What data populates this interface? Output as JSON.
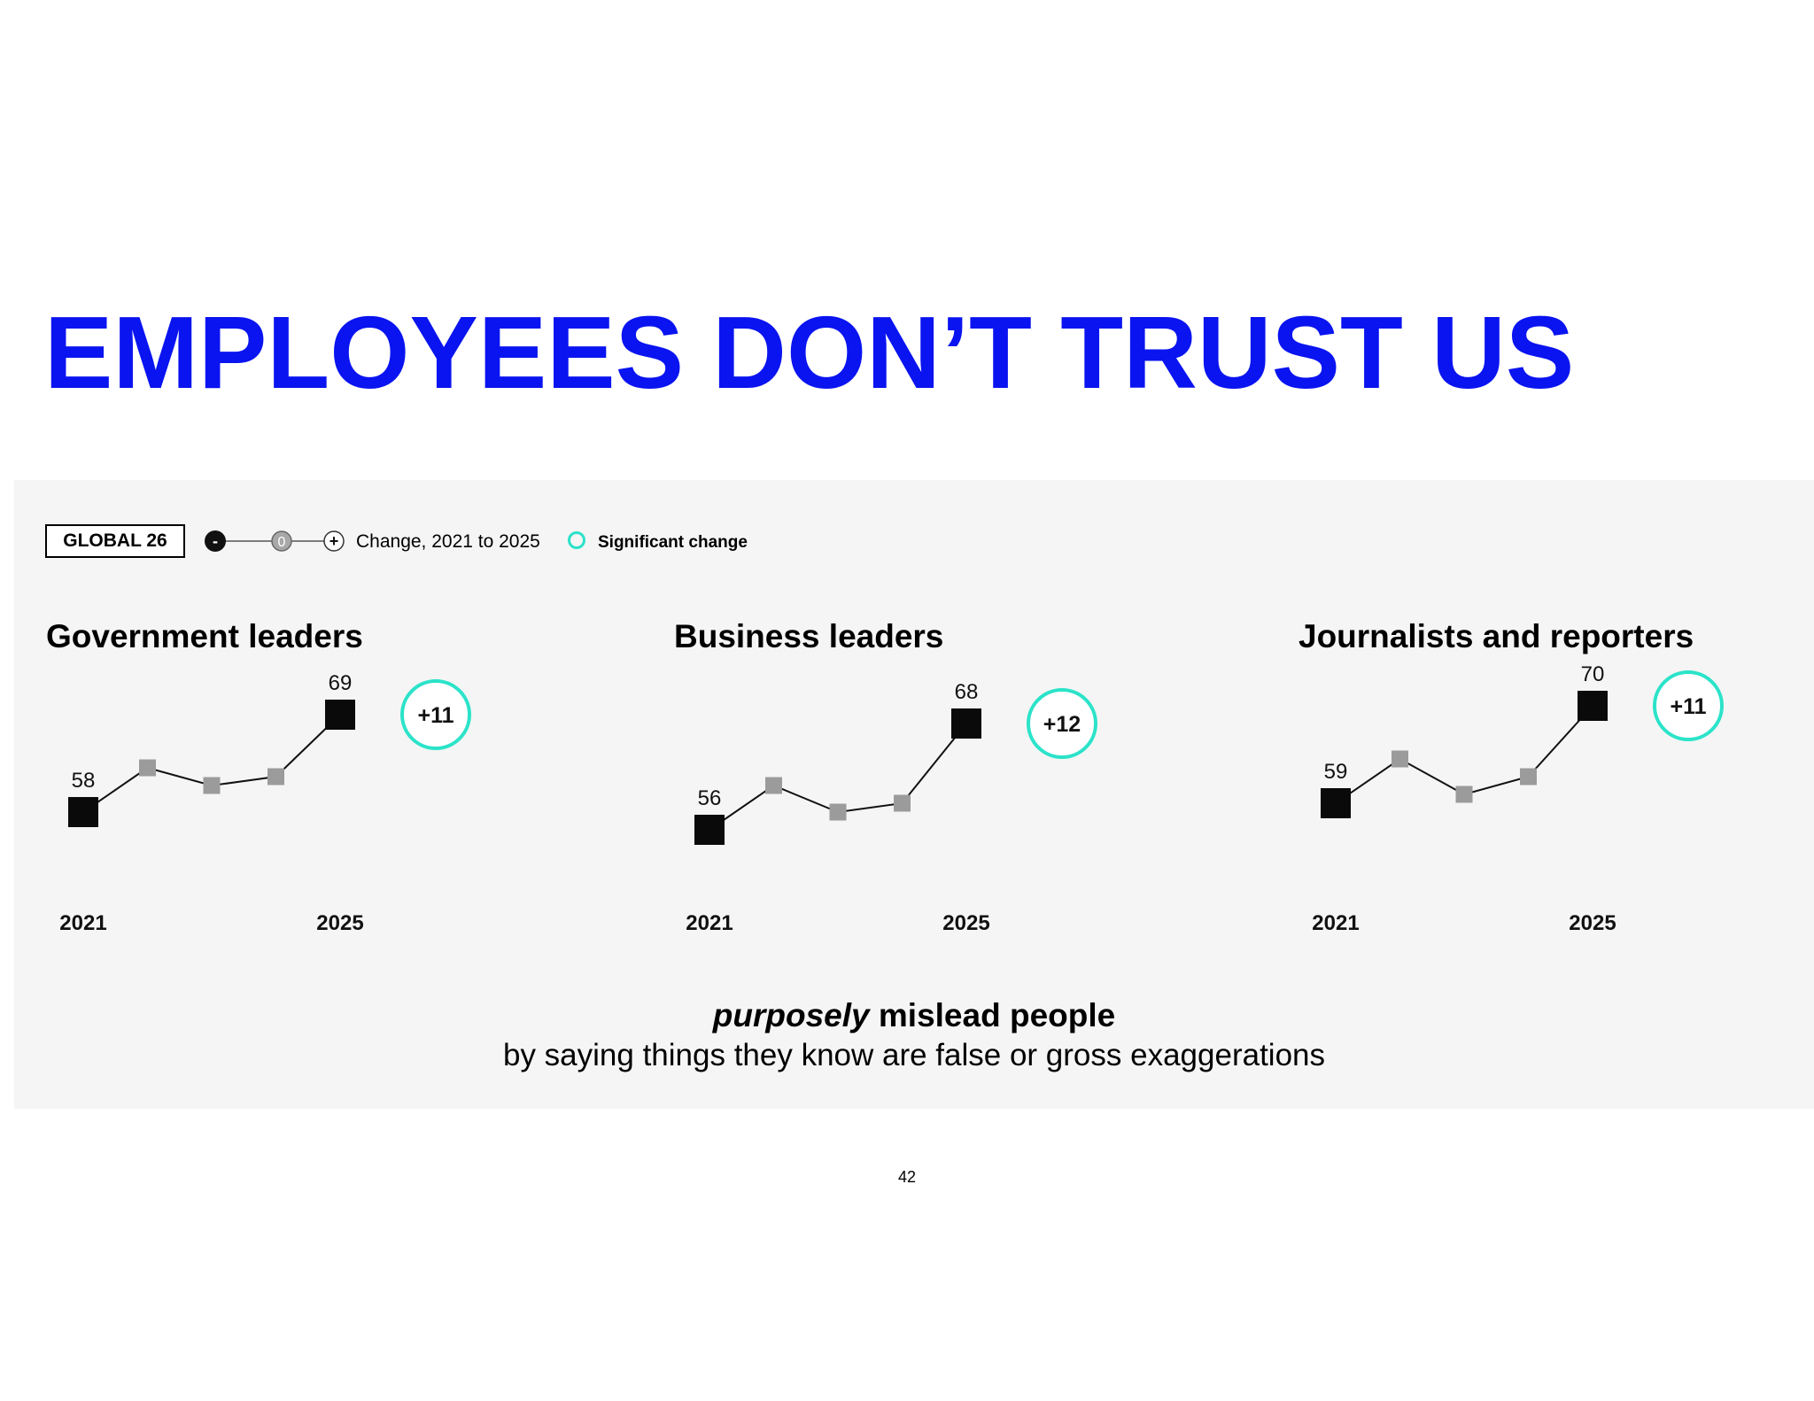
{
  "title": "EMPLOYEES DON’T TRUST US",
  "legend": {
    "badge": "GLOBAL 26",
    "scale_minus": "-",
    "scale_zero": "0",
    "scale_plus": "+",
    "change_label": "Change, 2021 to 2025",
    "significant_label": "Significant change",
    "significant_color": "#2be3c9"
  },
  "chart_data": [
    {
      "type": "line",
      "title": "Government leaders",
      "x": [
        "2021",
        "",
        "",
        "",
        "2025"
      ],
      "x_tick_labels": [
        "2021",
        "2025"
      ],
      "values": [
        58,
        63,
        61,
        62,
        69
      ],
      "labeled_values": {
        "first": "58",
        "last": "69"
      },
      "change": "+11",
      "significant": true
    },
    {
      "type": "line",
      "title": "Business leaders",
      "x": [
        "2021",
        "",
        "",
        "",
        "2025"
      ],
      "x_tick_labels": [
        "2021",
        "2025"
      ],
      "values": [
        56,
        61,
        58,
        59,
        68
      ],
      "labeled_values": {
        "first": "56",
        "last": "68"
      },
      "change": "+12",
      "significant": true
    },
    {
      "type": "line",
      "title": "Journalists and reporters",
      "x": [
        "2021",
        "",
        "",
        "",
        "2025"
      ],
      "x_tick_labels": [
        "2021",
        "2025"
      ],
      "values": [
        59,
        64,
        60,
        62,
        70
      ],
      "labeled_values": {
        "first": "59",
        "last": "70"
      },
      "change": "+11",
      "significant": true
    }
  ],
  "caption": {
    "emphasis": "purposely",
    "line1_rest": " mislead people",
    "line2": "by saying things they know are false or gross exaggerations"
  },
  "page_number": "42",
  "colors": {
    "title": "#0a14f0",
    "endpoint_marker": "#0a0a0a",
    "interim_marker": "#9b9b9b",
    "significant_ring": "#2be3c9",
    "panel_background": "#f5f5f5"
  }
}
